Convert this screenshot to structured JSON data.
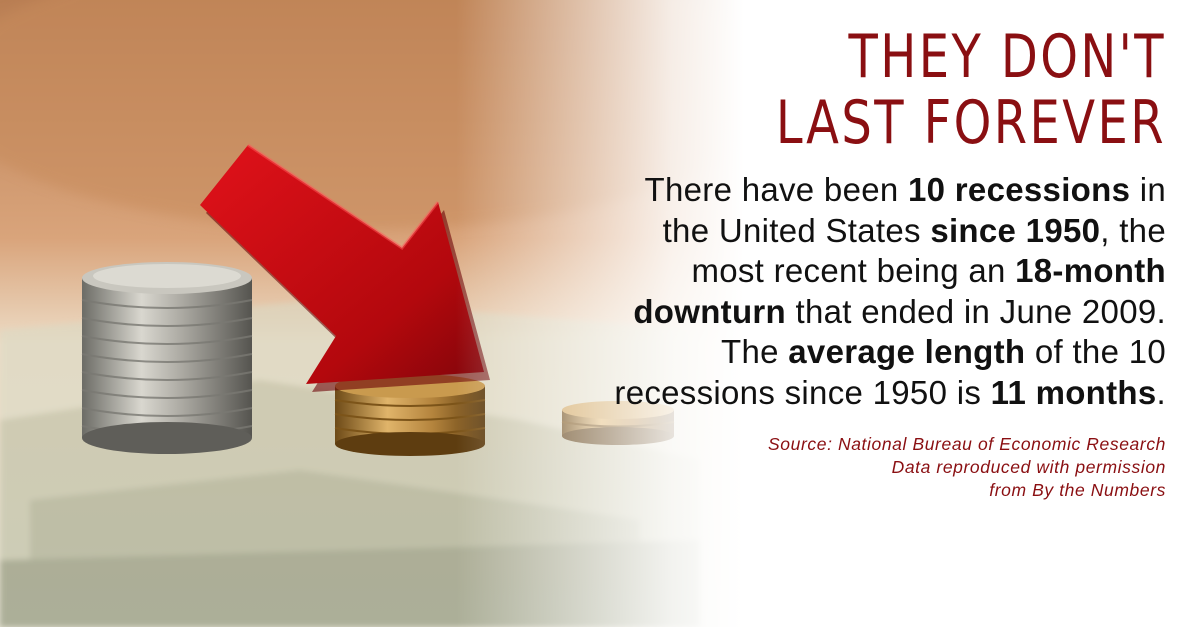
{
  "colors": {
    "headline": "#8a0f12",
    "source": "#8a0f12",
    "body": "#111111",
    "arrow": "#b3080d",
    "background_warm": "#c48a5a"
  },
  "headline": {
    "line1": "THEY DON'T",
    "line2": "LAST FOREVER"
  },
  "body": {
    "p1": "There have been ",
    "b1": "10 recessions",
    "p2": " in the United States ",
    "b2": "since 1950",
    "p3": ", the most recent being an ",
    "b3": "18-month downturn",
    "p4": " that ended in June 2009. The ",
    "b4": "average length",
    "p5": " of the 10 recessions since 1950 is ",
    "b5": "11 months",
    "p6": "."
  },
  "source": {
    "line1": "Source: National Bureau of Economic Research",
    "line2": "Data reproduced with permission",
    "line3": "from By the Numbers"
  },
  "illustration": {
    "icons": [
      "red-down-arrow-icon",
      "silver-coin-stack-icon",
      "gold-coin-stack-icon",
      "small-coin-stack-icon"
    ]
  }
}
